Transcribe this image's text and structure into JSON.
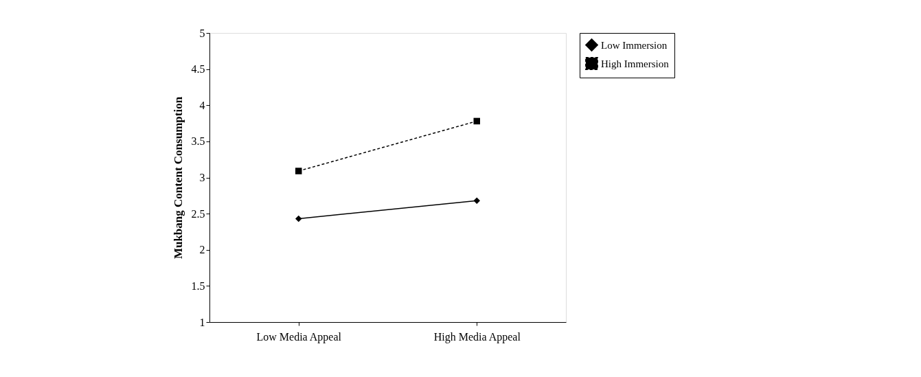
{
  "chart_data": {
    "type": "line",
    "ylabel": "Mukbang Content Consumption",
    "categories": [
      "Low Media Appeal",
      "High Media Appeal"
    ],
    "series": [
      {
        "name": "Low Immersion",
        "color": "#000000",
        "values": [
          2.43,
          2.68
        ],
        "marker": "diamond",
        "line_style": "solid"
      },
      {
        "name": "High Immersion",
        "color": "#000000",
        "values": [
          3.09,
          3.78
        ],
        "marker": "square",
        "line_style": "dashed"
      }
    ],
    "ylim": [
      1,
      5
    ],
    "yticks": [
      1,
      1.5,
      2,
      2.5,
      3,
      3.5,
      4,
      4.5,
      5
    ],
    "grid": false,
    "legend": "right"
  }
}
